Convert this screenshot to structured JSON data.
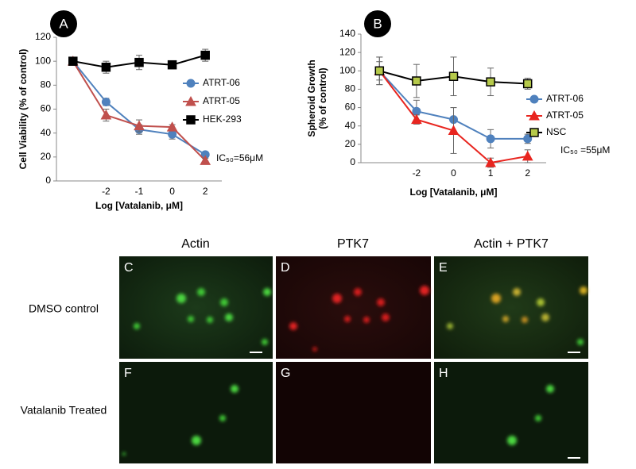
{
  "chart_data": [
    {
      "type": "line",
      "panel_label": "A",
      "ylabel": [
        "Cell Viability (% of control)"
      ],
      "xlabel": "Log [Vatalanib, μM]",
      "categories": [
        null,
        "-2",
        "-1",
        "0",
        "2"
      ],
      "ylim": [
        0,
        120
      ],
      "yticks": [
        0,
        20,
        40,
        60,
        80,
        100,
        120
      ],
      "grid": false,
      "legend": "right",
      "annotation": "IC₅₀=56μM",
      "series": [
        {
          "name": "ATRT-06",
          "color": "#4f81bd",
          "marker": "circle",
          "marker_fill": "#4f81bd",
          "values": [
            100,
            66,
            43,
            39,
            22
          ],
          "errors": [
            2,
            3,
            4,
            4,
            2
          ]
        },
        {
          "name": "ATRT-05",
          "color": "#c0504d",
          "marker": "triangle",
          "marker_fill": "#c0504d",
          "values": [
            100,
            55,
            46,
            45,
            17
          ],
          "errors": [
            2,
            5,
            5,
            2,
            2
          ]
        },
        {
          "name": "HEK-293",
          "color": "#000000",
          "marker": "square",
          "marker_fill": "#000000",
          "values": [
            100,
            95,
            99,
            97,
            105
          ],
          "errors": [
            2,
            5,
            6,
            3,
            5
          ]
        }
      ]
    },
    {
      "type": "line",
      "panel_label": "B",
      "ylabel": [
        "Spheroid Growth",
        "(% of control)"
      ],
      "xlabel": "Log [Vatalanib, μM]",
      "categories": [
        null,
        "-2",
        "0",
        "1",
        "2"
      ],
      "ylim": [
        0,
        140
      ],
      "yticks": [
        0,
        20,
        40,
        60,
        80,
        100,
        120,
        140
      ],
      "grid": false,
      "legend": "right",
      "annotation": "IC₅₀ =55μM",
      "series": [
        {
          "name": "ATRT-06",
          "color": "#4f81bd",
          "marker": "circle",
          "marker_fill": "#4f81bd",
          "values": [
            100,
            56,
            47,
            26,
            26
          ],
          "errors": [
            15,
            12,
            13,
            10,
            5
          ]
        },
        {
          "name": "ATRT-05",
          "color": "#e8251f",
          "marker": "triangle",
          "marker_fill": "#e8251f",
          "values": [
            100,
            47,
            35,
            0,
            7
          ],
          "errors": [
            10,
            5,
            25,
            5,
            7
          ]
        },
        {
          "name": "NSC",
          "color": "#000000",
          "marker": "square",
          "marker_fill": "#b5c94a",
          "values": [
            100,
            89,
            94,
            88,
            86
          ],
          "errors": [
            15,
            18,
            21,
            15,
            6
          ]
        }
      ]
    }
  ],
  "microscopy": {
    "columns": [
      "Actin",
      "PTK7",
      "Actin + PTK7"
    ],
    "rows": [
      "DMSO control",
      "Vatalanib Treated"
    ],
    "panel_letters": [
      [
        "C",
        "D",
        "E"
      ],
      [
        "F",
        "G",
        "H"
      ]
    ]
  }
}
